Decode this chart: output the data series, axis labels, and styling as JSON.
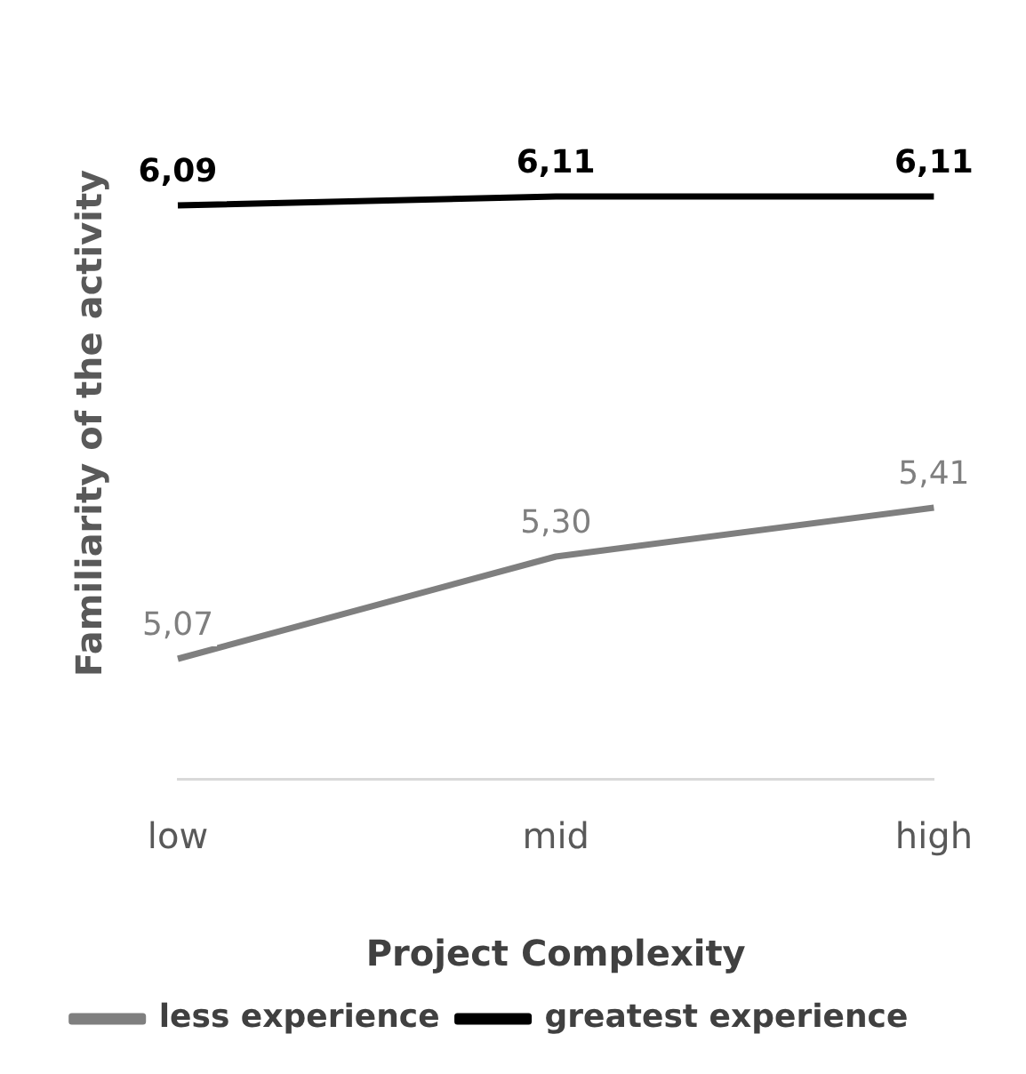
{
  "chart_data": {
    "type": "line",
    "xlabel": "Project Complexity",
    "ylabel": "Familiarity of the activity",
    "categories": [
      "low",
      "mid",
      "high"
    ],
    "series": [
      {
        "name": "less experience",
        "color": "#7f7f7f",
        "values": [
          5.07,
          5.3,
          5.41
        ],
        "value_labels": [
          "5,07",
          "5,30",
          "5,41"
        ]
      },
      {
        "name": "greatest experience",
        "color": "#000000",
        "values": [
          6.09,
          6.11,
          6.11
        ],
        "value_labels": [
          "6,09",
          "6,11",
          "6,11"
        ]
      }
    ],
    "tick_labels": "x",
    "grid": false,
    "legend": "bottom",
    "line_style": "solid"
  }
}
